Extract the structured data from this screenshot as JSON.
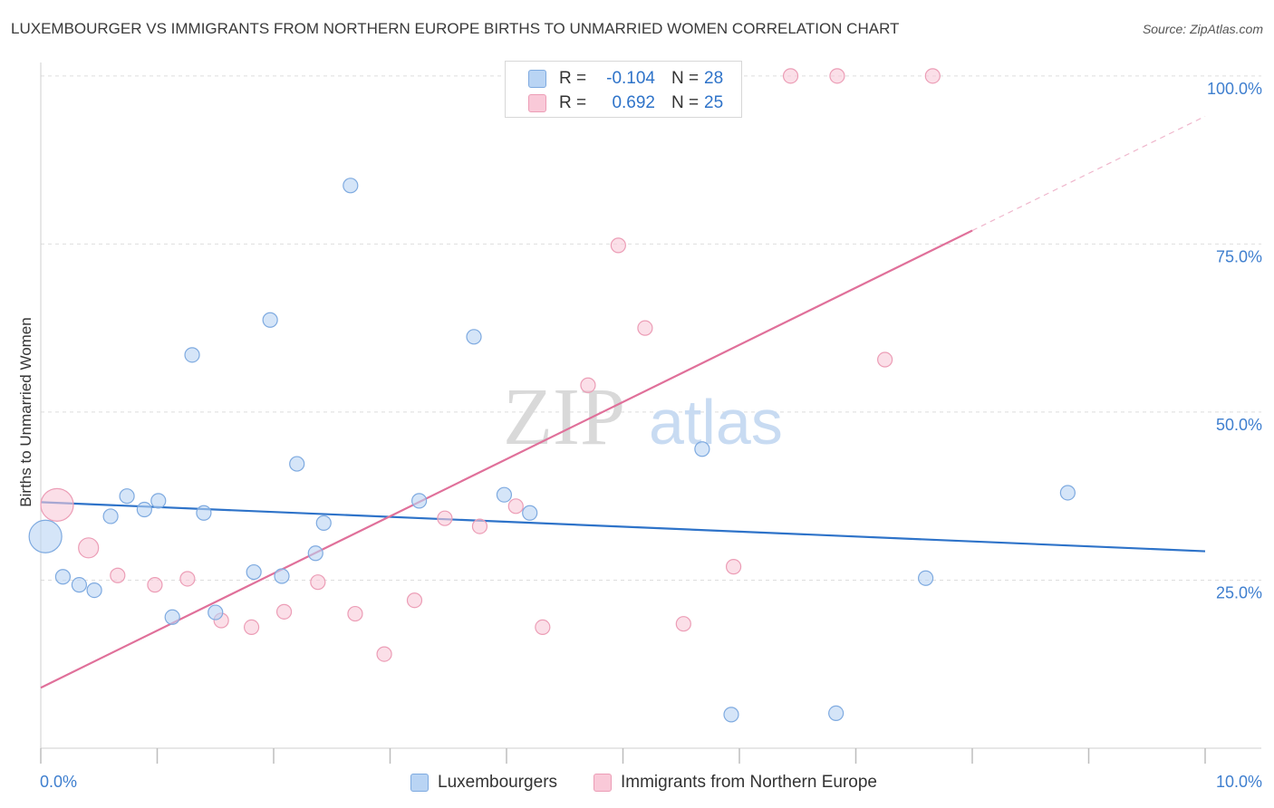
{
  "header": {
    "title": "LUXEMBOURGER VS IMMIGRANTS FROM NORTHERN EUROPE BIRTHS TO UNMARRIED WOMEN CORRELATION CHART",
    "source": "Source: ZipAtlas.com"
  },
  "legend": {
    "series1": {
      "r_label": "R =",
      "r_value": "-0.104",
      "n_label": "N =",
      "n_value": "28"
    },
    "series2": {
      "r_label": "R =",
      "r_value": "0.692",
      "n_label": "N =",
      "n_value": "25"
    }
  },
  "bottom_legend": {
    "series1_label": "Luxembourgers",
    "series2_label": "Immigrants from Northern Europe"
  },
  "watermark": {
    "part1": "ZIP",
    "part2": "atlas"
  },
  "colors": {
    "blue_fill": "#b9d4f4",
    "blue_stroke": "#7eaae0",
    "blue_line": "#2e73c9",
    "pink_fill": "#f9c9d8",
    "pink_stroke": "#ec9db6",
    "pink_line": "#e0709a",
    "axis_label": "#3f7fcf",
    "grid": "#dedede"
  },
  "chart_data": {
    "type": "scatter",
    "title": "LUXEMBOURGER VS IMMIGRANTS FROM NORTHERN EUROPE BIRTHS TO UNMARRIED WOMEN CORRELATION CHART",
    "xlabel": "",
    "ylabel": "Births to Unmarried Women",
    "xlim": [
      0,
      10
    ],
    "ylim": [
      0,
      102
    ],
    "x_tick_labels": [
      "0.0%",
      "10.0%"
    ],
    "y_ticks": [
      25,
      50,
      75,
      100
    ],
    "y_tick_labels": [
      "25.0%",
      "50.0%",
      "75.0%",
      "100.0%"
    ],
    "series": [
      {
        "name": "Luxembourgers",
        "R": -0.104,
        "N": 28,
        "points": [
          {
            "x": 0.04,
            "y": 31.5,
            "size": "large"
          },
          {
            "x": 0.19,
            "y": 25.5
          },
          {
            "x": 0.33,
            "y": 24.3
          },
          {
            "x": 0.46,
            "y": 23.5
          },
          {
            "x": 0.6,
            "y": 34.5
          },
          {
            "x": 0.74,
            "y": 37.5
          },
          {
            "x": 0.89,
            "y": 35.5
          },
          {
            "x": 1.01,
            "y": 36.8
          },
          {
            "x": 1.13,
            "y": 19.5
          },
          {
            "x": 1.3,
            "y": 58.5
          },
          {
            "x": 1.4,
            "y": 35.0
          },
          {
            "x": 1.5,
            "y": 20.2
          },
          {
            "x": 1.83,
            "y": 26.2
          },
          {
            "x": 1.97,
            "y": 63.7
          },
          {
            "x": 2.07,
            "y": 25.6
          },
          {
            "x": 2.2,
            "y": 42.3
          },
          {
            "x": 2.36,
            "y": 29.0
          },
          {
            "x": 2.43,
            "y": 33.5
          },
          {
            "x": 2.66,
            "y": 83.7
          },
          {
            "x": 3.25,
            "y": 36.8
          },
          {
            "x": 3.72,
            "y": 61.2
          },
          {
            "x": 3.98,
            "y": 37.7
          },
          {
            "x": 4.2,
            "y": 35.0
          },
          {
            "x": 5.68,
            "y": 44.5
          },
          {
            "x": 5.93,
            "y": 5.0
          },
          {
            "x": 6.83,
            "y": 5.2
          },
          {
            "x": 7.6,
            "y": 25.3
          },
          {
            "x": 8.82,
            "y": 38.0
          }
        ],
        "trend": {
          "x": [
            0.0,
            10.0
          ],
          "y": [
            36.6,
            29.3
          ]
        }
      },
      {
        "name": "Immigrants from Northern Europe",
        "R": 0.692,
        "N": 25,
        "points": [
          {
            "x": 0.14,
            "y": 36.2,
            "size": "large"
          },
          {
            "x": 0.41,
            "y": 29.8,
            "size": "medium"
          },
          {
            "x": 0.66,
            "y": 25.7
          },
          {
            "x": 0.98,
            "y": 24.3
          },
          {
            "x": 1.26,
            "y": 25.2
          },
          {
            "x": 1.55,
            "y": 19.0
          },
          {
            "x": 1.81,
            "y": 18.0
          },
          {
            "x": 2.09,
            "y": 20.3
          },
          {
            "x": 2.38,
            "y": 24.7
          },
          {
            "x": 2.7,
            "y": 20.0
          },
          {
            "x": 2.95,
            "y": 14.0
          },
          {
            "x": 3.21,
            "y": 22.0
          },
          {
            "x": 3.47,
            "y": 34.2
          },
          {
            "x": 3.77,
            "y": 33.0
          },
          {
            "x": 4.08,
            "y": 36.0
          },
          {
            "x": 4.31,
            "y": 18.0
          },
          {
            "x": 4.7,
            "y": 54.0
          },
          {
            "x": 4.96,
            "y": 74.8
          },
          {
            "x": 5.19,
            "y": 62.5
          },
          {
            "x": 5.52,
            "y": 18.5
          },
          {
            "x": 5.95,
            "y": 27.0
          },
          {
            "x": 6.44,
            "y": 100.0
          },
          {
            "x": 6.84,
            "y": 100.0
          },
          {
            "x": 7.25,
            "y": 57.8
          },
          {
            "x": 7.66,
            "y": 100.0
          }
        ],
        "trend": {
          "x": [
            0.0,
            8.0
          ],
          "y": [
            9.0,
            77.0
          ]
        },
        "trend_extension": {
          "x": [
            8.0,
            10.0
          ],
          "y": [
            77.0,
            94.0
          ]
        }
      }
    ]
  }
}
